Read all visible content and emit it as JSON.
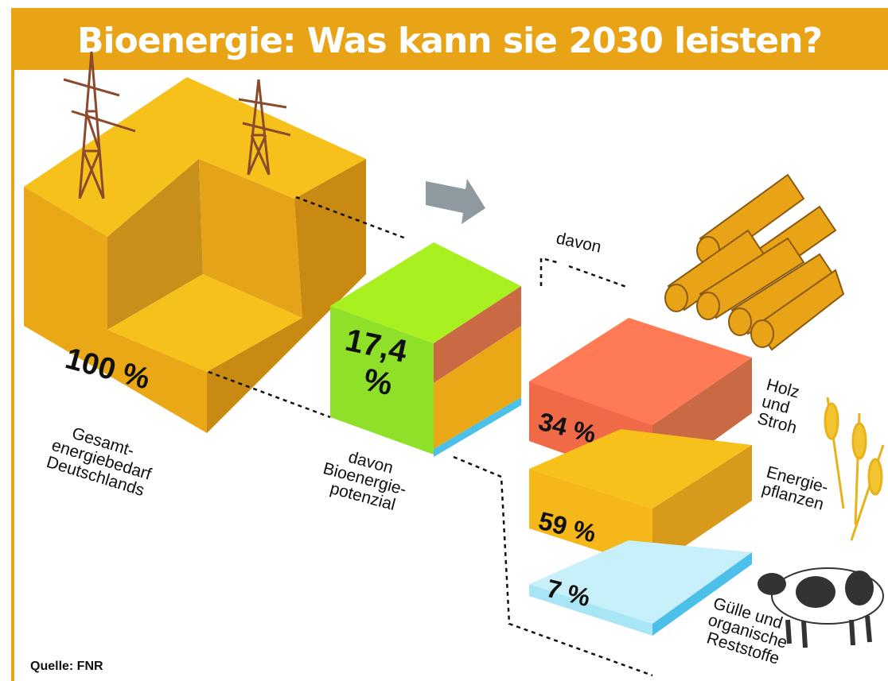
{
  "title": "Bioenergie: Was kann sie 2030 leisten?",
  "total": {
    "label": "100 %",
    "caption": [
      "Gesamt-",
      "energiebedarf",
      "Deutschlands"
    ]
  },
  "potential": {
    "label": [
      "17,4",
      "%"
    ],
    "caption": [
      "davon",
      "Bioenergie-",
      "potenzial"
    ]
  },
  "breakdown_heading": "davon",
  "parts": [
    {
      "label": "34 %",
      "caption": [
        "Holz",
        "und",
        "Stroh"
      ]
    },
    {
      "label": "59 %",
      "caption": [
        "Energie-",
        "pflanzen"
      ]
    },
    {
      "label": "7 %",
      "caption": [
        "Gülle und",
        "organische",
        "Reststoffe"
      ]
    }
  ],
  "source": "Quelle: FNR"
}
